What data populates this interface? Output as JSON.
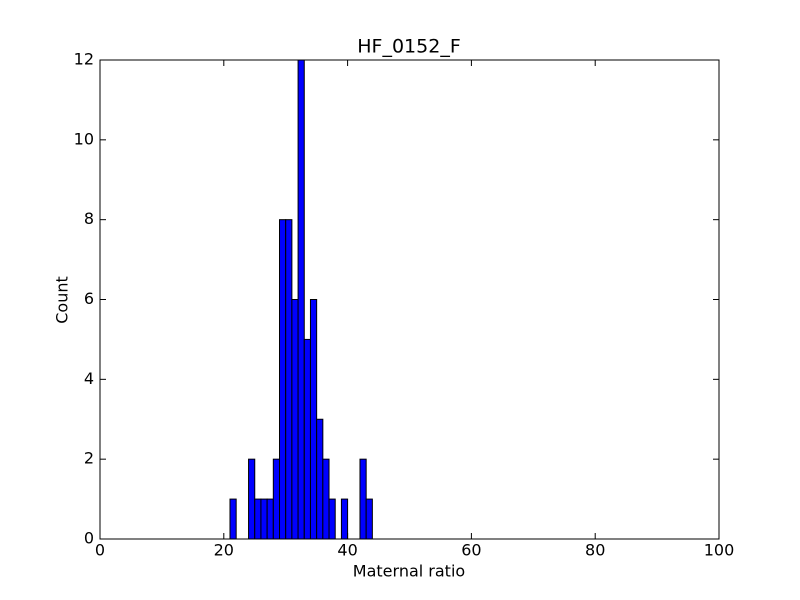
{
  "chart_data": {
    "type": "histogram",
    "title": "HF_0152_F",
    "x_label": "Maternal ratio",
    "y_label": "Count",
    "bins": [
      21,
      22,
      23,
      24,
      25,
      26,
      27,
      28,
      29,
      30,
      31,
      32,
      33,
      34,
      35,
      36,
      37,
      38,
      39,
      40,
      41,
      42,
      43,
      44
    ],
    "counts": [
      1,
      0,
      0,
      2,
      1,
      1,
      1,
      2,
      8,
      8,
      6,
      12,
      5,
      6,
      3,
      2,
      1,
      0,
      1,
      0,
      0,
      2,
      1
    ],
    "color": "#0000ff",
    "xlim": [
      0,
      100
    ],
    "xticks": [
      0,
      20,
      40,
      60,
      80,
      100
    ],
    "ylim": [
      0,
      12
    ],
    "yticks": [
      0,
      2,
      4,
      6,
      8,
      10,
      12
    ]
  }
}
